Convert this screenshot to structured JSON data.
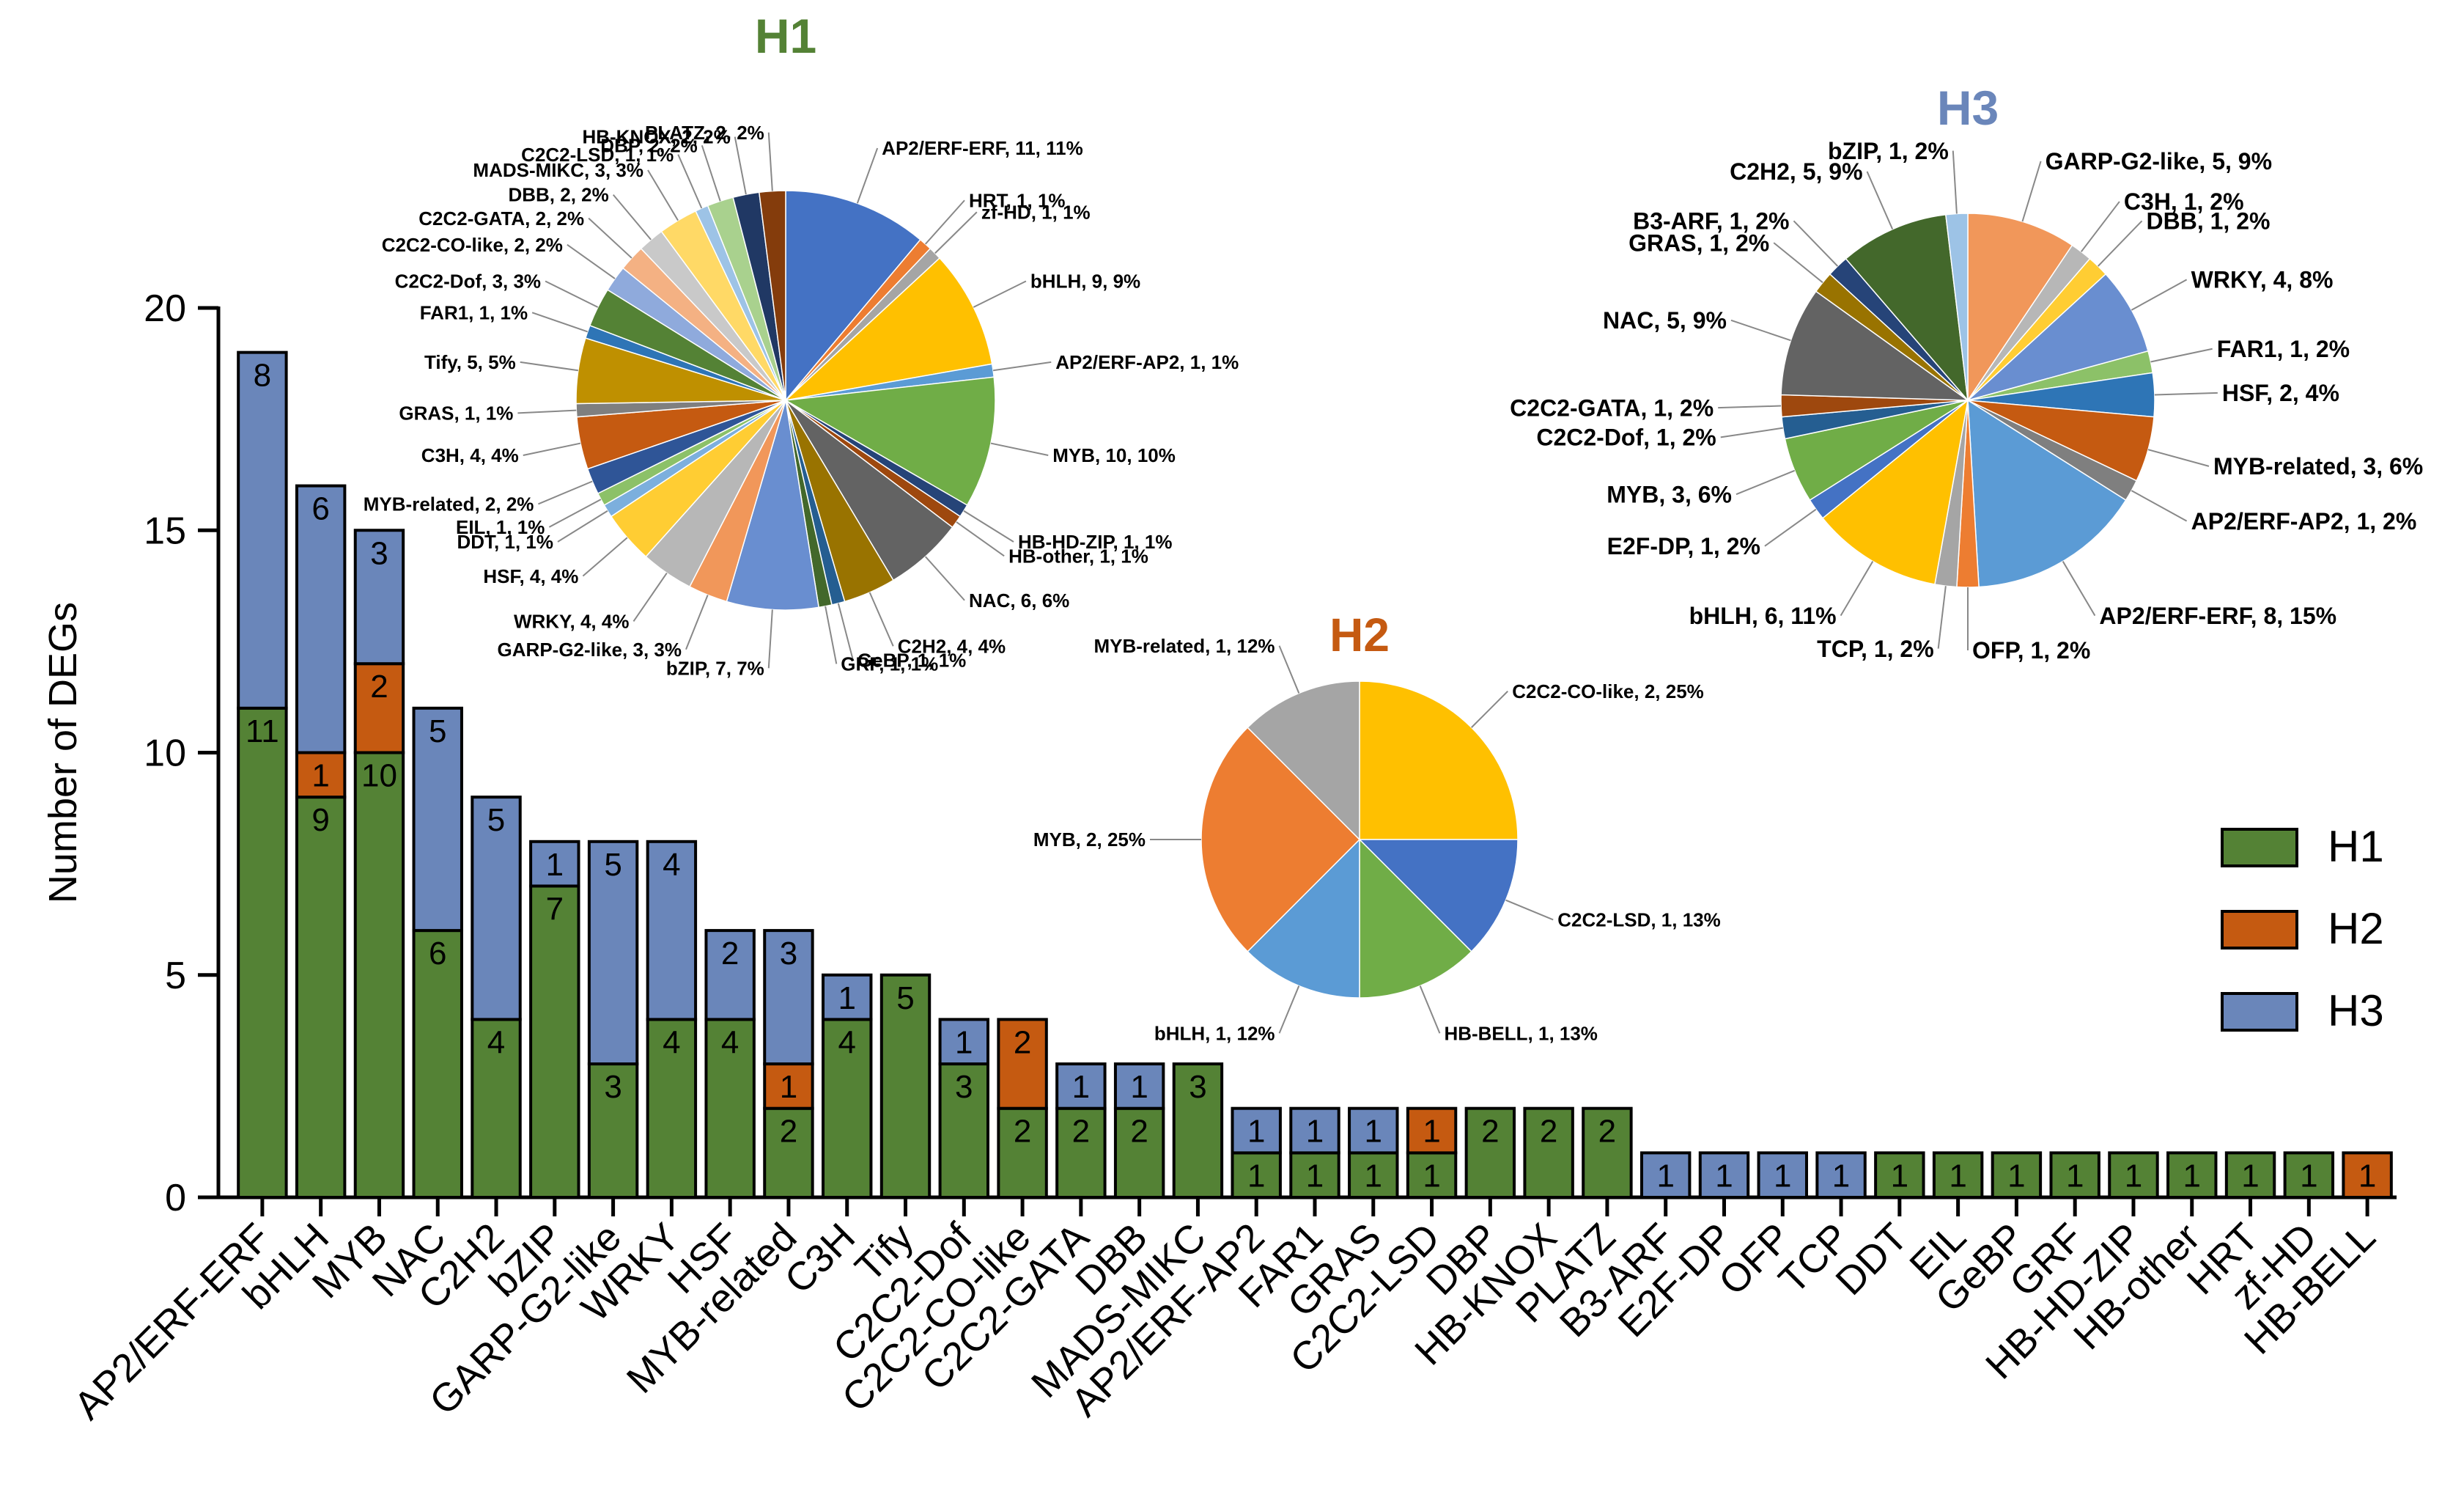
{
  "colors": {
    "H1": "#548235",
    "H2": "#C55A11",
    "H3": "#6A86BA"
  },
  "chart_data": [
    {
      "type": "bar",
      "stacked": true,
      "ylabel": "Number of DEGs",
      "ylim": [
        0,
        20
      ],
      "yticks": [
        "0",
        "5",
        "10",
        "15",
        "20"
      ],
      "categories": [
        "AP2/ERF-ERF",
        "bHLH",
        "MYB",
        "NAC",
        "C2H2",
        "bZIP",
        "GARP-G2-like",
        "WRKY",
        "HSF",
        "MYB-related",
        "C3H",
        "Tify",
        "C2C2-Dof",
        "C2C2-CO-like",
        "C2C2-GATA",
        "DBB",
        "MADS-MIKC",
        "AP2/ERF-AP2",
        "FAR1",
        "GRAS",
        "C2C2-LSD",
        "DBP",
        "HB-KNOX",
        "PLATZ",
        "B3-ARF",
        "E2F-DP",
        "OFP",
        "TCP",
        "DDT",
        "EIL",
        "GeBP",
        "GRF",
        "HB-HD-ZIP",
        "HB-other",
        "HRT",
        "zf-HD",
        "HB-BELL"
      ],
      "series": [
        {
          "name": "H1",
          "values": [
            11,
            9,
            10,
            6,
            4,
            7,
            3,
            4,
            4,
            2,
            4,
            5,
            3,
            2,
            2,
            2,
            3,
            1,
            1,
            1,
            1,
            2,
            2,
            2,
            0,
            0,
            0,
            0,
            1,
            1,
            1,
            1,
            1,
            1,
            1,
            1,
            0
          ]
        },
        {
          "name": "H2",
          "values": [
            0,
            1,
            2,
            0,
            0,
            0,
            0,
            0,
            0,
            1,
            0,
            0,
            0,
            2,
            0,
            0,
            0,
            0,
            0,
            0,
            1,
            0,
            0,
            0,
            0,
            0,
            0,
            0,
            0,
            0,
            0,
            0,
            0,
            0,
            0,
            0,
            1
          ]
        },
        {
          "name": "H3",
          "values": [
            8,
            6,
            3,
            5,
            5,
            1,
            5,
            4,
            2,
            3,
            1,
            0,
            1,
            0,
            1,
            1,
            0,
            1,
            1,
            1,
            0,
            0,
            0,
            0,
            1,
            1,
            1,
            1,
            0,
            0,
            0,
            0,
            0,
            0,
            0,
            0,
            0
          ]
        }
      ],
      "legend": {
        "position": "right",
        "entries": [
          "H1",
          "H2",
          "H3"
        ]
      },
      "grid": false
    },
    {
      "type": "pie",
      "title": "H1",
      "slices": [
        {
          "label": "AP2/ERF-ERF, 11, 11%",
          "value": 11,
          "color": "#4472C4"
        },
        {
          "label": "HRT, 1, 1%",
          "value": 1,
          "color": "#ED7D31"
        },
        {
          "label": "zf-HD, 1, 1%",
          "value": 1,
          "color": "#A5A5A5"
        },
        {
          "label": "bHLH, 9, 9%",
          "value": 9,
          "color": "#FFC000"
        },
        {
          "label": "AP2/ERF-AP2, 1, 1%",
          "value": 1,
          "color": "#5B9BD5"
        },
        {
          "label": "MYB, 10, 10%",
          "value": 10,
          "color": "#70AD47"
        },
        {
          "label": "HB-HD-ZIP, 1, 1%",
          "value": 1,
          "color": "#264478"
        },
        {
          "label": "HB-other, 1, 1%",
          "value": 1,
          "color": "#9E480E"
        },
        {
          "label": "NAC, 6, 6%",
          "value": 6,
          "color": "#636363"
        },
        {
          "label": "C2H2, 4, 4%",
          "value": 4,
          "color": "#997300"
        },
        {
          "label": "GeBP, 1, 1%",
          "value": 1,
          "color": "#255E91"
        },
        {
          "label": "GRF, 1, 1%",
          "value": 1,
          "color": "#43682B"
        },
        {
          "label": "bZIP, 7, 7%",
          "value": 7,
          "color": "#698ED0"
        },
        {
          "label": "GARP-G2-like, 3, 3%",
          "value": 3,
          "color": "#F1975A"
        },
        {
          "label": "WRKY, 4, 4%",
          "value": 4,
          "color": "#B7B7B7"
        },
        {
          "label": "HSF, 4, 4%",
          "value": 4,
          "color": "#FFCD33"
        },
        {
          "label": "DDT, 1, 1%",
          "value": 1,
          "color": "#7CAFDD"
        },
        {
          "label": "EIL, 1, 1%",
          "value": 1,
          "color": "#8CC168"
        },
        {
          "label": "MYB-related, 2, 2%",
          "value": 2,
          "color": "#2F5597"
        },
        {
          "label": "C3H, 4, 4%",
          "value": 4,
          "color": "#C55A11"
        },
        {
          "label": "GRAS, 1, 1%",
          "value": 1,
          "color": "#7F7F7F"
        },
        {
          "label": "Tify, 5, 5%",
          "value": 5,
          "color": "#BF9000"
        },
        {
          "label": "FAR1, 1, 1%",
          "value": 1,
          "color": "#2E75B6"
        },
        {
          "label": "C2C2-Dof, 3, 3%",
          "value": 3,
          "color": "#548235"
        },
        {
          "label": "C2C2-CO-like, 2, 2%",
          "value": 2,
          "color": "#8FAADC"
        },
        {
          "label": "C2C2-GATA, 2, 2%",
          "value": 2,
          "color": "#F4B183"
        },
        {
          "label": "DBB, 2, 2%",
          "value": 2,
          "color": "#C9C9C9"
        },
        {
          "label": "MADS-MIKC, 3, 3%",
          "value": 3,
          "color": "#FFD966"
        },
        {
          "label": "C2C2-LSD, 1, 1%",
          "value": 1,
          "color": "#9DC3E6"
        },
        {
          "label": "DBP, 2, 2%",
          "value": 2,
          "color": "#A9D18E"
        },
        {
          "label": "HB-KNOX, 2, 2%",
          "value": 2,
          "color": "#203864"
        },
        {
          "label": "PLATZ, 2, 2%",
          "value": 2,
          "color": "#843C0C"
        }
      ]
    },
    {
      "type": "pie",
      "title": "H2",
      "slices": [
        {
          "label": "C2C2-CO-like, 2, 25%",
          "value": 2,
          "color": "#FFC000"
        },
        {
          "label": "C2C2-LSD, 1, 13%",
          "value": 1,
          "color": "#4472C4"
        },
        {
          "label": "HB-BELL, 1, 13%",
          "value": 1,
          "color": "#70AD47"
        },
        {
          "label": "bHLH, 1, 12%",
          "value": 1,
          "color": "#5B9BD5"
        },
        {
          "label": "MYB, 2, 25%",
          "value": 2,
          "color": "#ED7D31"
        },
        {
          "label": "MYB-related, 1, 12%",
          "value": 1,
          "color": "#A5A5A5"
        }
      ]
    },
    {
      "type": "pie",
      "title": "H3",
      "slices": [
        {
          "label": "GARP-G2-like, 5, 9%",
          "value": 5,
          "color": "#F1975A"
        },
        {
          "label": "C3H, 1, 2%",
          "value": 1,
          "color": "#B7B7B7"
        },
        {
          "label": "DBB, 1, 2%",
          "value": 1,
          "color": "#FFCD33"
        },
        {
          "label": "WRKY, 4, 8%",
          "value": 4,
          "color": "#698ED0"
        },
        {
          "label": "FAR1, 1, 2%",
          "value": 1,
          "color": "#8CC168"
        },
        {
          "label": "HSF, 2, 4%",
          "value": 2,
          "color": "#2E75B6"
        },
        {
          "label": "MYB-related, 3, 6%",
          "value": 3,
          "color": "#C55A11"
        },
        {
          "label": "AP2/ERF-AP2, 1, 2%",
          "value": 1,
          "color": "#7F7F7F"
        },
        {
          "label": "AP2/ERF-ERF, 8, 15%",
          "value": 8,
          "color": "#5B9BD5"
        },
        {
          "label": "OFP, 1, 2%",
          "value": 1,
          "color": "#ED7D31"
        },
        {
          "label": "TCP, 1, 2%",
          "value": 1,
          "color": "#A5A5A5"
        },
        {
          "label": "bHLH, 6, 11%",
          "value": 6,
          "color": "#FFC000"
        },
        {
          "label": "E2F-DP, 1, 2%",
          "value": 1,
          "color": "#4472C4"
        },
        {
          "label": "MYB, 3, 6%",
          "value": 3,
          "color": "#70AD47"
        },
        {
          "label": "C2C2-Dof, 1, 2%",
          "value": 1,
          "color": "#255E91"
        },
        {
          "label": "C2C2-GATA, 1, 2%",
          "value": 1,
          "color": "#9E480E"
        },
        {
          "label": "NAC, 5, 9%",
          "value": 5,
          "color": "#636363"
        },
        {
          "label": "GRAS, 1, 2%",
          "value": 1,
          "color": "#997300"
        },
        {
          "label": "B3-ARF, 1, 2%",
          "value": 1,
          "color": "#264478"
        },
        {
          "label": "C2H2, 5, 9%",
          "value": 5,
          "color": "#43682B"
        },
        {
          "label": "bZIP, 1, 2%",
          "value": 1,
          "color": "#9DC3E6"
        }
      ]
    }
  ]
}
